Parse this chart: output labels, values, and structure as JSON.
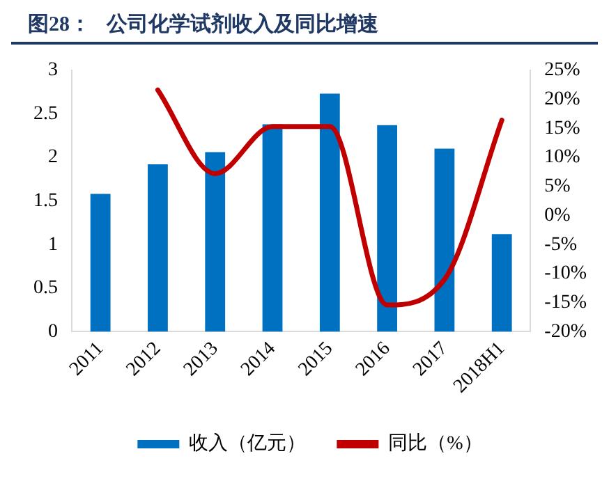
{
  "chart_data": {
    "type": "bar",
    "title": "图28：   公司化学试剂收入及同比增速",
    "categories": [
      "2011",
      "2012",
      "2013",
      "2014",
      "2015",
      "2016",
      "2017",
      "2018H1"
    ],
    "series": [
      {
        "name": "收入（亿元）",
        "color": "#0070c0",
        "values": [
          1.58,
          1.92,
          2.06,
          2.38,
          2.73,
          2.37,
          2.1,
          1.12
        ]
      },
      {
        "name": "同比（%）",
        "type": "line",
        "axis": "y2",
        "color": "#c00000",
        "values": [
          null,
          21.6,
          7.2,
          15.3,
          15.3,
          -15.4,
          -11,
          16.4
        ]
      }
    ],
    "ylim": [
      0,
      3
    ],
    "yticks": [
      0,
      0.5,
      1,
      1.5,
      2,
      2.5,
      3
    ],
    "y2lim": [
      -20,
      25
    ],
    "y2ticks": [
      {
        "value": -20,
        "label": "-20%"
      },
      {
        "value": -15,
        "label": "-15%"
      },
      {
        "value": -10,
        "label": "-10%"
      },
      {
        "value": -5,
        "label": "-5%"
      },
      {
        "value": 0,
        "label": "0%"
      },
      {
        "value": 5,
        "label": "5%"
      },
      {
        "value": 10,
        "label": "10%"
      },
      {
        "value": 15,
        "label": "15%"
      },
      {
        "value": 20,
        "label": "20%"
      },
      {
        "value": 25,
        "label": "25%"
      }
    ],
    "grid": false,
    "legend": "bottom",
    "marker": "none"
  }
}
